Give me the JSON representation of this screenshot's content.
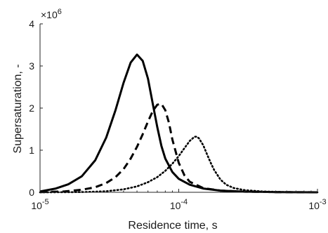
{
  "chart_data": {
    "type": "line",
    "xlabel": "Residence time, s",
    "ylabel": "Supersaturation, -",
    "x_scale": "log",
    "xlim": [
      1e-05,
      0.001
    ],
    "ylim": [
      0,
      4000000
    ],
    "y_multiplier_label": "×10",
    "y_multiplier_exponent": "6",
    "x_ticks": [
      {
        "value": 1e-05,
        "base": "10",
        "exp": "-5"
      },
      {
        "value": 0.0001,
        "base": "10",
        "exp": "-4"
      },
      {
        "value": 0.001,
        "base": "10",
        "exp": "-3"
      }
    ],
    "y_ticks": [
      {
        "value": 0,
        "label": "0"
      },
      {
        "value": 1000000,
        "label": "1"
      },
      {
        "value": 2000000,
        "label": "2"
      },
      {
        "value": 3000000,
        "label": "3"
      },
      {
        "value": 4000000,
        "label": "4"
      }
    ],
    "grid": false,
    "series": [
      {
        "style": "solid",
        "color": "#000000",
        "points": [
          [
            1e-05,
            20000
          ],
          [
            1.3e-05,
            90000
          ],
          [
            1.6e-05,
            190000
          ],
          [
            2e-05,
            380000
          ],
          [
            2.5e-05,
            760000
          ],
          [
            3e-05,
            1300000
          ],
          [
            3.5e-05,
            1950000
          ],
          [
            4e-05,
            2600000
          ],
          [
            4.5e-05,
            3080000
          ],
          [
            5e-05,
            3270000
          ],
          [
            5.5e-05,
            3120000
          ],
          [
            6e-05,
            2700000
          ],
          [
            6.5e-05,
            2100000
          ],
          [
            7e-05,
            1550000
          ],
          [
            7.5e-05,
            1100000
          ],
          [
            8e-05,
            800000
          ],
          [
            9e-05,
            480000
          ],
          [
            0.0001,
            320000
          ],
          [
            0.00012,
            180000
          ],
          [
            0.00015,
            90000
          ],
          [
            0.0002,
            40000
          ],
          [
            0.0003,
            15000
          ],
          [
            0.0005,
            5000
          ],
          [
            0.001,
            0
          ]
        ]
      },
      {
        "style": "dashed",
        "color": "#000000",
        "points": [
          [
            1e-05,
            5000
          ],
          [
            1.5e-05,
            20000
          ],
          [
            2e-05,
            60000
          ],
          [
            2.5e-05,
            120000
          ],
          [
            3e-05,
            220000
          ],
          [
            3.5e-05,
            360000
          ],
          [
            4e-05,
            550000
          ],
          [
            4.5e-05,
            800000
          ],
          [
            5e-05,
            1080000
          ],
          [
            5.5e-05,
            1380000
          ],
          [
            6e-05,
            1680000
          ],
          [
            6.5e-05,
            1930000
          ],
          [
            7e-05,
            2080000
          ],
          [
            7.5e-05,
            2100000
          ],
          [
            8e-05,
            1950000
          ],
          [
            8.5e-05,
            1650000
          ],
          [
            9e-05,
            1250000
          ],
          [
            0.0001,
            700000
          ],
          [
            0.00011,
            400000
          ],
          [
            0.00012,
            250000
          ],
          [
            0.00015,
            100000
          ],
          [
            0.0002,
            40000
          ],
          [
            0.0003,
            15000
          ],
          [
            0.0005,
            5000
          ],
          [
            0.001,
            0
          ]
        ]
      },
      {
        "style": "dotted",
        "color": "#000000",
        "points": [
          [
            1e-05,
            0
          ],
          [
            2e-05,
            5000
          ],
          [
            3e-05,
            25000
          ],
          [
            4e-05,
            70000
          ],
          [
            5e-05,
            140000
          ],
          [
            6e-05,
            240000
          ],
          [
            7e-05,
            360000
          ],
          [
            8e-05,
            510000
          ],
          [
            9e-05,
            680000
          ],
          [
            0.0001,
            860000
          ],
          [
            0.00011,
            1050000
          ],
          [
            0.00012,
            1220000
          ],
          [
            0.00013,
            1320000
          ],
          [
            0.000135,
            1320000
          ],
          [
            0.00014,
            1280000
          ],
          [
            0.00015,
            1120000
          ],
          [
            0.00016,
            900000
          ],
          [
            0.00017,
            700000
          ],
          [
            0.00018,
            530000
          ],
          [
            0.0002,
            300000
          ],
          [
            0.00022,
            180000
          ],
          [
            0.00025,
            100000
          ],
          [
            0.0003,
            50000
          ],
          [
            0.0004,
            20000
          ],
          [
            0.0006,
            5000
          ],
          [
            0.001,
            0
          ]
        ]
      }
    ]
  }
}
